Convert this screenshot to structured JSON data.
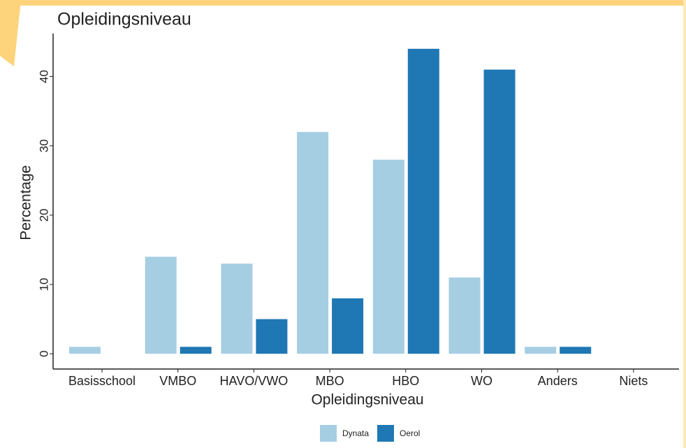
{
  "chart_data": {
    "type": "bar",
    "title": "Opleidingsniveau",
    "x_label": "Opleidingsniveau",
    "y_label": "Percentage",
    "categories": [
      "Basisschool",
      "VMBO",
      "HAVO/VWO",
      "MBO",
      "HBO",
      "WO",
      "Anders",
      "Niets"
    ],
    "series": [
      {
        "name": "Dynata",
        "color": "#a6cee3",
        "values": [
          1,
          14,
          13,
          32,
          28,
          11,
          1,
          0
        ]
      },
      {
        "name": "Oerol",
        "color": "#1f78b4",
        "values": [
          0,
          1,
          5,
          8,
          44,
          41,
          1,
          0
        ]
      }
    ],
    "ylim": [
      -2.2,
      46.2
    ],
    "yticks": [
      0,
      10,
      20,
      30,
      40
    ],
    "grid": false,
    "legend": "bottom"
  }
}
